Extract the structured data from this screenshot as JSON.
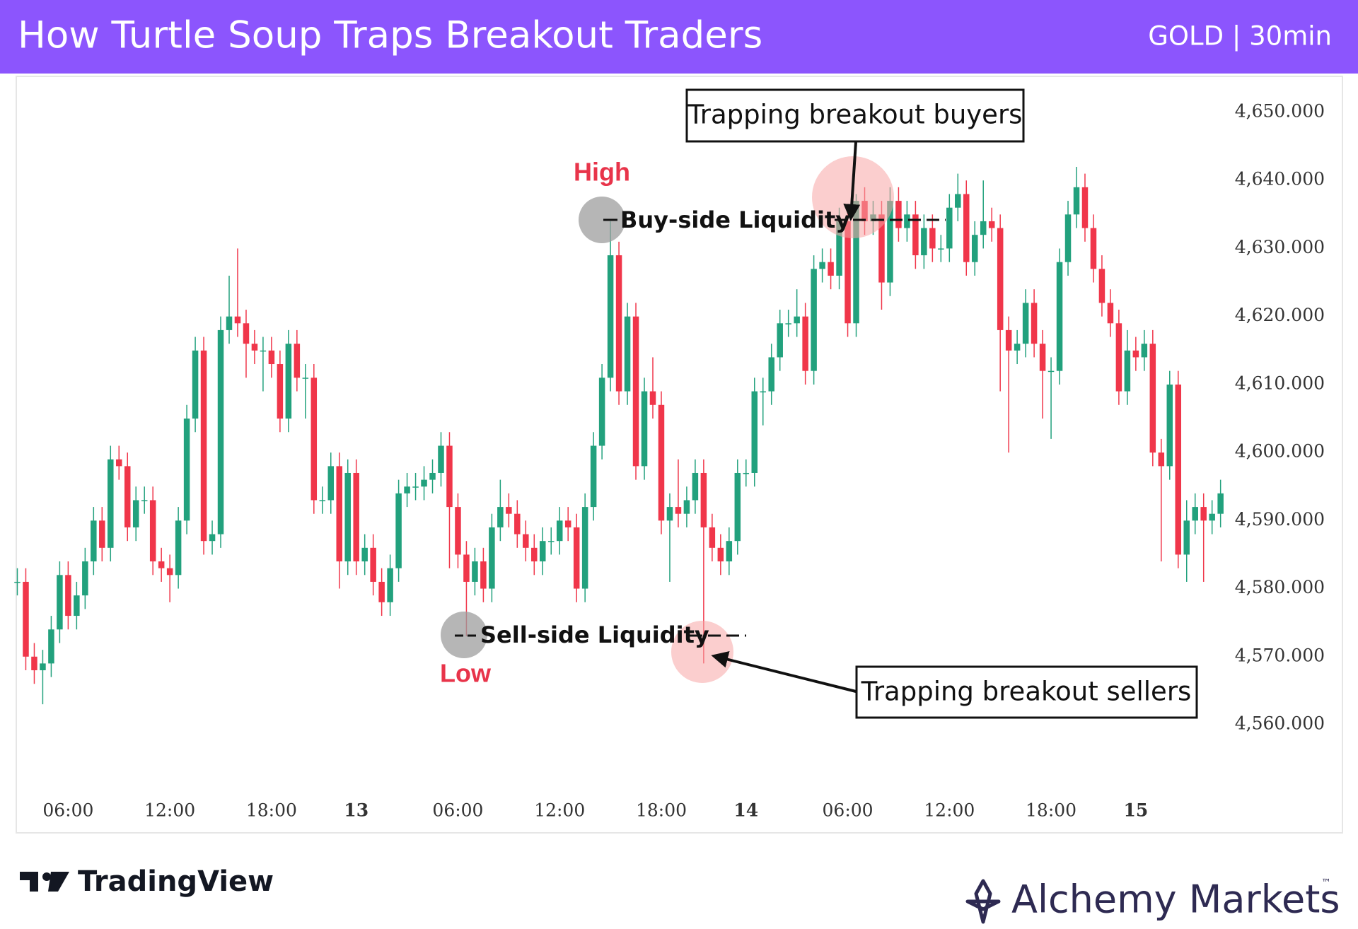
{
  "chart_data": {
    "type": "candlestick",
    "title": "How Turtle Soup Traps Breakout Traders",
    "subtitle": "GOLD | 30min",
    "up_color": "#22a17d",
    "down_color": "#f0364a",
    "open": [
      4581,
      4581,
      4570,
      4568,
      4569,
      4574,
      4582,
      4576,
      4579,
      4584,
      4590,
      4586,
      4599,
      4598,
      4589,
      4593,
      4593,
      4584,
      4583,
      4582,
      4590,
      4605,
      4615,
      4587,
      4588,
      4618,
      4620,
      4619,
      4616,
      4615,
      4615,
      4613,
      4605,
      4616,
      4611,
      4611,
      4593,
      4593,
      4598,
      4584,
      4597,
      4584,
      4586,
      4581,
      4578,
      4583,
      4594,
      4595,
      4595,
      4596,
      4597,
      4601,
      4592,
      4585,
      4581,
      4584,
      4580,
      4589,
      4592,
      4591,
      4588,
      4586,
      4584,
      4587,
      4587,
      4590,
      4589,
      4580,
      4592,
      4601,
      4611,
      4629,
      4609,
      4620,
      4598,
      4609,
      4607,
      4590,
      4592,
      4591,
      4593,
      4597,
      4589,
      4586,
      4584,
      4587,
      4597,
      4597,
      4609,
      4609,
      4614,
      4619,
      4619,
      4620,
      4612,
      4627,
      4628,
      4626,
      4634,
      4619,
      4637,
      4634,
      4635,
      4625,
      4637,
      4633,
      4635,
      4629,
      4633,
      4630,
      4630,
      4636,
      4638,
      4628,
      4632,
      4634,
      4633,
      4618,
      4615,
      4616,
      4622,
      4616,
      4612,
      4612,
      4628,
      4635,
      4639,
      4633,
      4627,
      4622,
      4619,
      4609,
      4615,
      4614,
      4616,
      4600,
      4598,
      4610,
      4585,
      4590,
      4592,
      4590,
      4591
    ],
    "high": [
      4583,
      4583,
      4572,
      4571,
      4576,
      4584,
      4584,
      4581,
      4586,
      4592,
      4592,
      4601,
      4601,
      4600,
      4595,
      4595,
      4595,
      4586,
      4585,
      4592,
      4607,
      4617,
      4617,
      4590,
      4620,
      4626,
      4630,
      4621,
      4618,
      4617,
      4617,
      4615,
      4618,
      4618,
      4613,
      4613,
      4595,
      4600,
      4600,
      4599,
      4599,
      4588,
      4588,
      4583,
      4585,
      4596,
      4597,
      4597,
      4598,
      4599,
      4603,
      4603,
      4594,
      4587,
      4586,
      4586,
      4591,
      4596,
      4594,
      4593,
      4590,
      4588,
      4589,
      4589,
      4592,
      4592,
      4591,
      4594,
      4603,
      4613,
      4634,
      4631,
      4622,
      4622,
      4611,
      4614,
      4609,
      4594,
      4599,
      4595,
      4599,
      4599,
      4591,
      4588,
      4589,
      4599,
      4599,
      4611,
      4611,
      4616,
      4621,
      4621,
      4624,
      4622,
      4629,
      4630,
      4630,
      4636,
      4636,
      4638,
      4639,
      4637,
      4637,
      4639,
      4639,
      4637,
      4637,
      4635,
      4635,
      4632,
      4638,
      4641,
      4640,
      4634,
      4640,
      4636,
      4635,
      4620,
      4618,
      4624,
      4624,
      4618,
      4614,
      4630,
      4637,
      4642,
      4641,
      4635,
      4629,
      4624,
      4621,
      4618,
      4617,
      4618,
      4618,
      4602,
      4612,
      4612,
      4593,
      4594,
      4594,
      4593,
      4596
    ],
    "low": [
      4579,
      4568,
      4566,
      4563,
      4567,
      4572,
      4574,
      4574,
      4577,
      4582,
      4584,
      4584,
      4596,
      4587,
      4587,
      4591,
      4582,
      4581,
      4578,
      4580,
      4588,
      4603,
      4585,
      4585,
      4586,
      4616,
      4617,
      4611,
      4613,
      4609,
      4611,
      4603,
      4603,
      4609,
      4605,
      4591,
      4591,
      4591,
      4580,
      4582,
      4582,
      4582,
      4579,
      4576,
      4576,
      4581,
      4592,
      4593,
      4593,
      4594,
      4595,
      4583,
      4583,
      4573,
      4579,
      4578,
      4578,
      4587,
      4589,
      4586,
      4584,
      4582,
      4582,
      4585,
      4585,
      4587,
      4578,
      4578,
      4590,
      4599,
      4609,
      4607,
      4607,
      4596,
      4596,
      4605,
      4588,
      4581,
      4589,
      4589,
      4591,
      4569,
      4584,
      4582,
      4582,
      4585,
      4595,
      4595,
      4604,
      4607,
      4612,
      4617,
      4617,
      4610,
      4610,
      4625,
      4624,
      4624,
      4617,
      4617,
      4632,
      4632,
      4621,
      4623,
      4631,
      4631,
      4627,
      4627,
      4628,
      4628,
      4628,
      4634,
      4626,
      4626,
      4630,
      4631,
      4609,
      4600,
      4613,
      4614,
      4614,
      4605,
      4602,
      4610,
      4626,
      4633,
      4631,
      4625,
      4620,
      4617,
      4607,
      4607,
      4612,
      4612,
      4598,
      4584,
      4596,
      4583,
      4581,
      4588,
      4581,
      4588,
      4589
    ],
    "close": [
      4581,
      4570,
      4568,
      4569,
      4574,
      4582,
      4576,
      4579,
      4584,
      4590,
      4586,
      4599,
      4598,
      4589,
      4593,
      4593,
      4584,
      4583,
      4582,
      4590,
      4605,
      4615,
      4587,
      4588,
      4618,
      4620,
      4619,
      4616,
      4615,
      4615,
      4613,
      4605,
      4616,
      4611,
      4611,
      4593,
      4593,
      4598,
      4584,
      4597,
      4584,
      4586,
      4581,
      4578,
      4583,
      4594,
      4595,
      4595,
      4596,
      4597,
      4601,
      4592,
      4585,
      4581,
      4584,
      4580,
      4589,
      4592,
      4591,
      4588,
      4586,
      4584,
      4587,
      4587,
      4590,
      4589,
      4580,
      4592,
      4601,
      4611,
      4629,
      4609,
      4620,
      4598,
      4609,
      4607,
      4590,
      4592,
      4591,
      4593,
      4597,
      4589,
      4586,
      4584,
      4587,
      4597,
      4597,
      4609,
      4609,
      4614,
      4619,
      4619,
      4620,
      4612,
      4627,
      4628,
      4626,
      4634,
      4619,
      4637,
      4634,
      4635,
      4625,
      4637,
      4633,
      4635,
      4629,
      4633,
      4630,
      4630,
      4636,
      4638,
      4628,
      4632,
      4634,
      4633,
      4618,
      4615,
      4616,
      4622,
      4616,
      4612,
      4612,
      4628,
      4635,
      4639,
      4633,
      4627,
      4622,
      4619,
      4609,
      4615,
      4614,
      4616,
      4600,
      4598,
      4610,
      4585,
      4590,
      4592,
      4590,
      4591,
      4594
    ],
    "ylim": [
      4550,
      4655
    ],
    "yticks": [
      {
        "value": 4650,
        "label": "4,650.000"
      },
      {
        "value": 4640,
        "label": "4,640.000"
      },
      {
        "value": 4630,
        "label": "4,630.000"
      },
      {
        "value": 4620,
        "label": "4,620.000"
      },
      {
        "value": 4610,
        "label": "4,610.000"
      },
      {
        "value": 4600,
        "label": "4,600.000"
      },
      {
        "value": 4590,
        "label": "4,590.000"
      },
      {
        "value": 4580,
        "label": "4,580.000"
      },
      {
        "value": 4570,
        "label": "4,570.000"
      },
      {
        "value": 4560,
        "label": "4,560.000"
      }
    ],
    "xticks": [
      {
        "value": 6,
        "label": "06:00"
      },
      {
        "value": 18,
        "label": "12:00"
      },
      {
        "value": 30,
        "label": "18:00"
      },
      {
        "value": 40,
        "label": "13"
      },
      {
        "value": 52,
        "label": "06:00"
      },
      {
        "value": 64,
        "label": "12:00"
      },
      {
        "value": 76,
        "label": "18:00"
      },
      {
        "value": 86,
        "label": "14"
      },
      {
        "value": 98,
        "label": "06:00"
      },
      {
        "value": 110,
        "label": "12:00"
      },
      {
        "value": 122,
        "label": "18:00"
      },
      {
        "value": 132,
        "label": "15"
      }
    ],
    "bold_xticks": [
      "13",
      "14",
      "15"
    ],
    "annotations": {
      "high": "High",
      "low": "Low",
      "buy_side": "Buy-side Liquidity",
      "sell_side": "Sell-side Liquidity",
      "buyers": "Trapping breakout buyers",
      "sellers": "Trapping breakout sellers"
    },
    "branding": {
      "tradingview": "TradingView",
      "alchemy": "Alchemy Markets",
      "tm": "™"
    }
  }
}
